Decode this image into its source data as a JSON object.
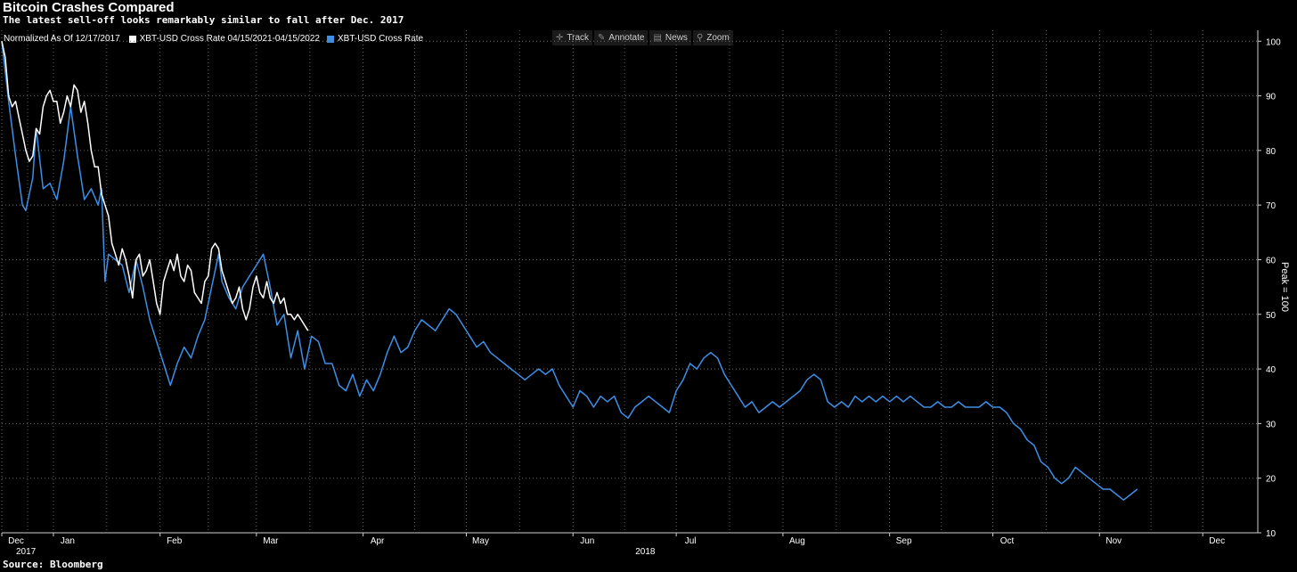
{
  "header": {
    "title": "Bitcoin Crashes Compared",
    "subtitle": "The latest sell-off looks remarkably similar to fall after Dec. 2017"
  },
  "footer": {
    "source": "Source: Bloomberg"
  },
  "legend": {
    "normalized": "Normalized As Of 12/17/2017",
    "items": [
      {
        "label": "XBT-USD Cross Rate 04/15/2021-04/15/2022",
        "color": "#ffffff"
      },
      {
        "label": "XBT-USD Cross Rate",
        "color": "#3d8fe8"
      }
    ]
  },
  "toolbar": [
    {
      "label": "Track",
      "icon": "crosshair-icon",
      "glyph": "✛"
    },
    {
      "label": "Annotate",
      "icon": "pencil-icon",
      "glyph": "✎"
    },
    {
      "label": "News",
      "icon": "news-icon",
      "glyph": "▤"
    },
    {
      "label": "Zoom",
      "icon": "zoom-icon",
      "glyph": "⚲"
    }
  ],
  "chart_data": {
    "type": "line",
    "ylabel": "Peak = 100",
    "ylim": [
      10,
      102
    ],
    "yticks": [
      10,
      20,
      30,
      40,
      50,
      60,
      70,
      80,
      90,
      100
    ],
    "xlim": [
      0,
      365
    ],
    "month_ticks": [
      {
        "label": "Dec",
        "day": 0
      },
      {
        "label": "Jan",
        "day": 15
      },
      {
        "label": "Feb",
        "day": 46
      },
      {
        "label": "Mar",
        "day": 74
      },
      {
        "label": "Apr",
        "day": 105
      },
      {
        "label": "May",
        "day": 135
      },
      {
        "label": "Jun",
        "day": 166
      },
      {
        "label": "Jul",
        "day": 196
      },
      {
        "label": "Aug",
        "day": 227
      },
      {
        "label": "Sep",
        "day": 258
      },
      {
        "label": "Oct",
        "day": 288
      },
      {
        "label": "Nov",
        "day": 319
      },
      {
        "label": "Dec",
        "day": 349
      }
    ],
    "year_labels": [
      {
        "label": "2017",
        "day": 0
      },
      {
        "label": "2018",
        "day": 181
      }
    ],
    "grid": true,
    "series": [
      {
        "name": "XBT-USD Cross Rate 04/15/2021-04/15/2022",
        "color": "#ffffff",
        "points": [
          [
            0,
            100
          ],
          [
            1,
            97
          ],
          [
            2,
            90
          ],
          [
            3,
            88
          ],
          [
            4,
            89
          ],
          [
            5,
            86
          ],
          [
            6,
            83
          ],
          [
            7,
            80
          ],
          [
            8,
            78
          ],
          [
            9,
            79
          ],
          [
            10,
            84
          ],
          [
            11,
            83
          ],
          [
            12,
            88
          ],
          [
            13,
            90
          ],
          [
            14,
            91
          ],
          [
            15,
            89
          ],
          [
            16,
            89
          ],
          [
            17,
            85
          ],
          [
            18,
            87
          ],
          [
            19,
            90
          ],
          [
            20,
            88
          ],
          [
            21,
            92
          ],
          [
            22,
            91
          ],
          [
            23,
            87
          ],
          [
            24,
            89
          ],
          [
            25,
            85
          ],
          [
            26,
            80
          ],
          [
            27,
            77
          ],
          [
            28,
            77
          ],
          [
            29,
            72
          ],
          [
            30,
            70
          ],
          [
            31,
            68
          ],
          [
            32,
            63
          ],
          [
            33,
            61
          ],
          [
            34,
            59
          ],
          [
            35,
            62
          ],
          [
            36,
            60
          ],
          [
            37,
            57
          ],
          [
            38,
            53
          ],
          [
            39,
            60
          ],
          [
            40,
            61
          ],
          [
            41,
            57
          ],
          [
            42,
            58
          ],
          [
            43,
            60
          ],
          [
            44,
            56
          ],
          [
            45,
            52
          ],
          [
            46,
            50
          ],
          [
            47,
            56
          ],
          [
            48,
            58
          ],
          [
            49,
            60
          ],
          [
            50,
            58
          ],
          [
            51,
            61
          ],
          [
            52,
            57
          ],
          [
            53,
            56
          ],
          [
            54,
            59
          ],
          [
            55,
            58
          ],
          [
            56,
            54
          ],
          [
            57,
            53
          ],
          [
            58,
            52
          ],
          [
            59,
            56
          ],
          [
            60,
            57
          ],
          [
            61,
            62
          ],
          [
            62,
            63
          ],
          [
            63,
            62
          ],
          [
            64,
            58
          ],
          [
            65,
            56
          ],
          [
            66,
            54
          ],
          [
            67,
            52
          ],
          [
            68,
            53
          ],
          [
            69,
            55
          ],
          [
            70,
            51
          ],
          [
            71,
            49
          ],
          [
            72,
            51
          ],
          [
            73,
            55
          ],
          [
            74,
            57
          ],
          [
            75,
            54
          ],
          [
            76,
            53
          ],
          [
            77,
            56
          ],
          [
            78,
            53
          ],
          [
            79,
            52
          ],
          [
            80,
            54
          ],
          [
            81,
            52
          ],
          [
            82,
            53
          ],
          [
            83,
            50
          ],
          [
            84,
            50
          ],
          [
            85,
            49
          ],
          [
            86,
            50
          ],
          [
            87,
            49
          ],
          [
            88,
            48
          ],
          [
            89,
            47
          ]
        ]
      },
      {
        "name": "XBT-USD Cross Rate",
        "color": "#3d8fe8",
        "points": [
          [
            0,
            100
          ],
          [
            2,
            89
          ],
          [
            4,
            79
          ],
          [
            6,
            70
          ],
          [
            7,
            69
          ],
          [
            9,
            75
          ],
          [
            10,
            84
          ],
          [
            12,
            73
          ],
          [
            14,
            74
          ],
          [
            16,
            71
          ],
          [
            18,
            78
          ],
          [
            20,
            88
          ],
          [
            22,
            79
          ],
          [
            24,
            71
          ],
          [
            26,
            73
          ],
          [
            28,
            70
          ],
          [
            29,
            73
          ],
          [
            30,
            56
          ],
          [
            31,
            61
          ],
          [
            33,
            60
          ],
          [
            35,
            59
          ],
          [
            37,
            54
          ],
          [
            39,
            60
          ],
          [
            41,
            55
          ],
          [
            43,
            49
          ],
          [
            45,
            45
          ],
          [
            47,
            41
          ],
          [
            49,
            37
          ],
          [
            51,
            41
          ],
          [
            53,
            44
          ],
          [
            55,
            42
          ],
          [
            57,
            46
          ],
          [
            59,
            49
          ],
          [
            61,
            55
          ],
          [
            63,
            61
          ],
          [
            64,
            56
          ],
          [
            66,
            53
          ],
          [
            68,
            51
          ],
          [
            70,
            55
          ],
          [
            72,
            57
          ],
          [
            74,
            59
          ],
          [
            76,
            61
          ],
          [
            78,
            55
          ],
          [
            80,
            48
          ],
          [
            82,
            50
          ],
          [
            84,
            42
          ],
          [
            86,
            47
          ],
          [
            88,
            40
          ],
          [
            90,
            46
          ],
          [
            92,
            45
          ],
          [
            94,
            41
          ],
          [
            96,
            41
          ],
          [
            98,
            37
          ],
          [
            100,
            36
          ],
          [
            102,
            39
          ],
          [
            104,
            35
          ],
          [
            106,
            38
          ],
          [
            108,
            36
          ],
          [
            110,
            39
          ],
          [
            112,
            43
          ],
          [
            114,
            46
          ],
          [
            116,
            43
          ],
          [
            118,
            44
          ],
          [
            120,
            47
          ],
          [
            122,
            49
          ],
          [
            124,
            48
          ],
          [
            126,
            47
          ],
          [
            128,
            49
          ],
          [
            130,
            51
          ],
          [
            132,
            50
          ],
          [
            134,
            48
          ],
          [
            136,
            46
          ],
          [
            138,
            44
          ],
          [
            140,
            45
          ],
          [
            142,
            43
          ],
          [
            144,
            42
          ],
          [
            146,
            41
          ],
          [
            148,
            40
          ],
          [
            150,
            39
          ],
          [
            152,
            38
          ],
          [
            154,
            39
          ],
          [
            156,
            40
          ],
          [
            158,
            39
          ],
          [
            160,
            40
          ],
          [
            162,
            37
          ],
          [
            164,
            35
          ],
          [
            166,
            33
          ],
          [
            168,
            36
          ],
          [
            170,
            35
          ],
          [
            172,
            33
          ],
          [
            174,
            35
          ],
          [
            176,
            34
          ],
          [
            178,
            35
          ],
          [
            180,
            32
          ],
          [
            182,
            31
          ],
          [
            184,
            33
          ],
          [
            186,
            34
          ],
          [
            188,
            35
          ],
          [
            190,
            34
          ],
          [
            192,
            33
          ],
          [
            194,
            32
          ],
          [
            196,
            36
          ],
          [
            198,
            38
          ],
          [
            200,
            41
          ],
          [
            202,
            40
          ],
          [
            204,
            42
          ],
          [
            206,
            43
          ],
          [
            208,
            42
          ],
          [
            210,
            39
          ],
          [
            212,
            37
          ],
          [
            214,
            35
          ],
          [
            216,
            33
          ],
          [
            218,
            34
          ],
          [
            220,
            32
          ],
          [
            222,
            33
          ],
          [
            224,
            34
          ],
          [
            226,
            33
          ],
          [
            228,
            34
          ],
          [
            230,
            35
          ],
          [
            232,
            36
          ],
          [
            234,
            38
          ],
          [
            236,
            39
          ],
          [
            238,
            38
          ],
          [
            240,
            34
          ],
          [
            242,
            33
          ],
          [
            244,
            34
          ],
          [
            246,
            33
          ],
          [
            248,
            35
          ],
          [
            250,
            34
          ],
          [
            252,
            35
          ],
          [
            254,
            34
          ],
          [
            256,
            35
          ],
          [
            258,
            34
          ],
          [
            260,
            35
          ],
          [
            262,
            34
          ],
          [
            264,
            35
          ],
          [
            266,
            34
          ],
          [
            268,
            33
          ],
          [
            270,
            33
          ],
          [
            272,
            34
          ],
          [
            274,
            33
          ],
          [
            276,
            33
          ],
          [
            278,
            34
          ],
          [
            280,
            33
          ],
          [
            282,
            33
          ],
          [
            284,
            33
          ],
          [
            286,
            34
          ],
          [
            288,
            33
          ],
          [
            290,
            33
          ],
          [
            292,
            32
          ],
          [
            294,
            30
          ],
          [
            296,
            29
          ],
          [
            298,
            27
          ],
          [
            300,
            26
          ],
          [
            302,
            23
          ],
          [
            304,
            22
          ],
          [
            306,
            20
          ],
          [
            308,
            19
          ],
          [
            310,
            20
          ],
          [
            312,
            22
          ],
          [
            314,
            21
          ],
          [
            316,
            20
          ],
          [
            318,
            19
          ],
          [
            320,
            18
          ],
          [
            322,
            18
          ],
          [
            324,
            17
          ],
          [
            326,
            16
          ],
          [
            328,
            17
          ],
          [
            330,
            18
          ]
        ]
      }
    ]
  }
}
